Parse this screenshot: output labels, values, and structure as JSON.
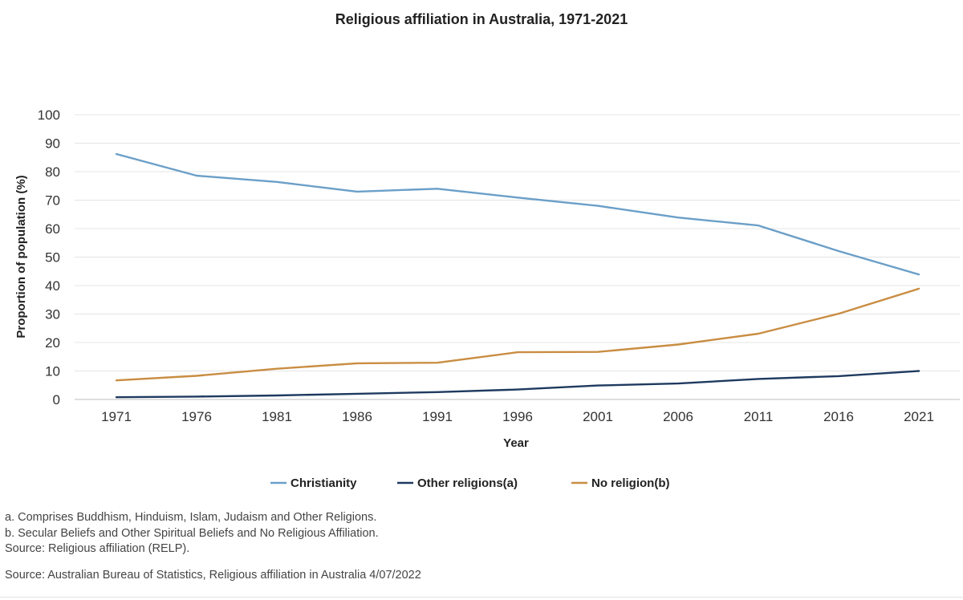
{
  "chart_data": {
    "type": "line",
    "title": "Religious affiliation in Australia, 1971-2021",
    "xlabel": "Year",
    "ylabel": "Proportion of population (%)",
    "categories": [
      "1971",
      "1976",
      "1981",
      "1986",
      "1991",
      "1996",
      "2001",
      "2006",
      "2011",
      "2016",
      "2021"
    ],
    "ylim": [
      0,
      100
    ],
    "yticks": [
      0,
      10,
      20,
      30,
      40,
      50,
      60,
      70,
      80,
      90,
      100
    ],
    "grid": true,
    "legend_position": "bottom-center",
    "series": [
      {
        "name": "Christianity",
        "color": "#6b9fc8",
        "values": [
          86.2,
          78.6,
          76.4,
          73.0,
          74.0,
          70.9,
          68.0,
          63.9,
          61.1,
          52.1,
          43.9
        ]
      },
      {
        "name": "Other religions(a)",
        "color": "#1e3a5f",
        "values": [
          0.8,
          1.0,
          1.4,
          2.0,
          2.6,
          3.5,
          4.9,
          5.6,
          7.2,
          8.2,
          10.0
        ]
      },
      {
        "name": "No religion(b)",
        "color": "#c98d42",
        "values": [
          6.7,
          8.3,
          10.8,
          12.7,
          12.9,
          16.6,
          16.7,
          19.3,
          23.1,
          30.1,
          38.9
        ]
      }
    ]
  },
  "notes": [
    "a. Comprises Buddhism, Hinduism, Islam, Judaism and Other Religions.",
    "b. Secular Beliefs and Other Spiritual Beliefs and No Religious Affiliation.",
    "Source: Religious affiliation (RELP)."
  ],
  "source": "Source: Australian Bureau of Statistics, Religious affiliation in Australia 4/07/2022"
}
